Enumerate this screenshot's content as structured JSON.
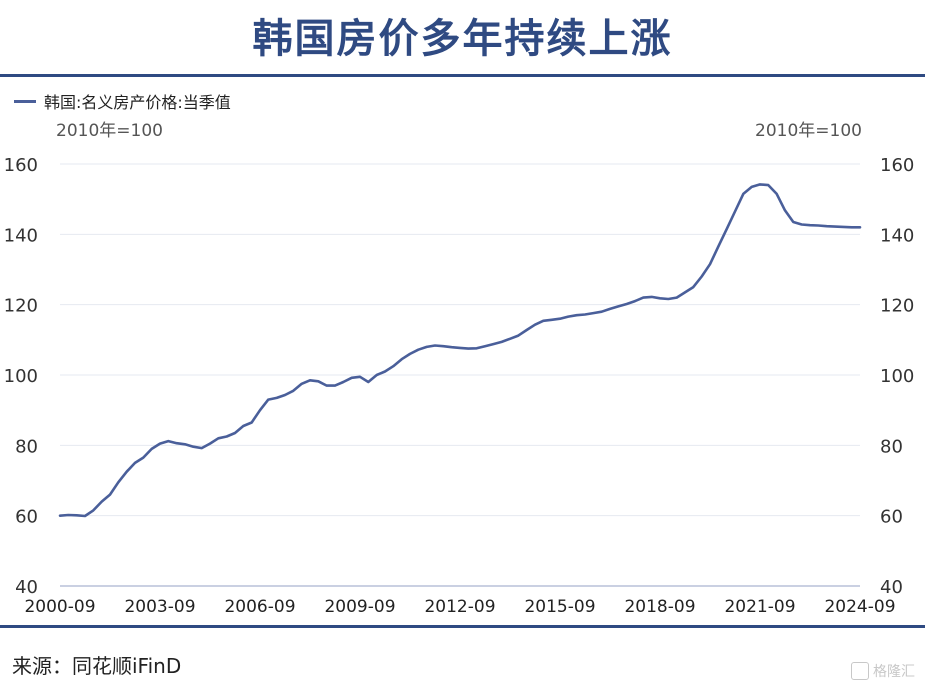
{
  "header": {
    "title": "韩国房价多年持续上涨"
  },
  "legend": {
    "label": "韩国:名义房产价格:当季值",
    "color": "#4a5f9a"
  },
  "units": {
    "left": "2010年=100",
    "right": "2010年=100"
  },
  "footer": {
    "source": "来源：同花顺iFinD",
    "watermark": "格隆汇"
  },
  "chart_data": {
    "type": "line",
    "title": "韩国房价多年持续上涨",
    "xlabel": "",
    "ylabel": "",
    "ylim": [
      40,
      160
    ],
    "yticks": [
      40,
      60,
      80,
      100,
      120,
      140,
      160
    ],
    "xtick_labels": [
      "2000-09",
      "2003-09",
      "2006-09",
      "2009-09",
      "2012-09",
      "2015-09",
      "2018-09",
      "2021-09",
      "2024-09"
    ],
    "grid": true,
    "legend_position": "top-left",
    "series": [
      {
        "name": "韩国:名义房产价格:当季值",
        "color": "#4a5f9a",
        "x": [
          "2000-09",
          "2000-12",
          "2001-03",
          "2001-06",
          "2001-09",
          "2001-12",
          "2002-03",
          "2002-06",
          "2002-09",
          "2002-12",
          "2003-03",
          "2003-06",
          "2003-09",
          "2003-12",
          "2004-03",
          "2004-06",
          "2004-09",
          "2004-12",
          "2005-03",
          "2005-06",
          "2005-09",
          "2005-12",
          "2006-03",
          "2006-06",
          "2006-09",
          "2006-12",
          "2007-03",
          "2007-06",
          "2007-09",
          "2007-12",
          "2008-03",
          "2008-06",
          "2008-09",
          "2008-12",
          "2009-03",
          "2009-06",
          "2009-09",
          "2009-12",
          "2010-03",
          "2010-06",
          "2010-09",
          "2010-12",
          "2011-03",
          "2011-06",
          "2011-09",
          "2011-12",
          "2012-03",
          "2012-06",
          "2012-09",
          "2012-12",
          "2013-03",
          "2013-06",
          "2013-09",
          "2013-12",
          "2014-03",
          "2014-06",
          "2014-09",
          "2014-12",
          "2015-03",
          "2015-06",
          "2015-09",
          "2015-12",
          "2016-03",
          "2016-06",
          "2016-09",
          "2016-12",
          "2017-03",
          "2017-06",
          "2017-09",
          "2017-12",
          "2018-03",
          "2018-06",
          "2018-09",
          "2018-12",
          "2019-03",
          "2019-06",
          "2019-09",
          "2019-12",
          "2020-03",
          "2020-06",
          "2020-09",
          "2020-12",
          "2021-03",
          "2021-06",
          "2021-09",
          "2021-12",
          "2022-03",
          "2022-06",
          "2022-09",
          "2022-12",
          "2023-03",
          "2023-06",
          "2023-09",
          "2023-12",
          "2024-03",
          "2024-06",
          "2024-09"
        ],
        "values": [
          60.0,
          60.2,
          60.1,
          59.9,
          61.5,
          64.0,
          66.0,
          69.5,
          72.5,
          75.0,
          76.5,
          79.0,
          80.5,
          81.2,
          80.6,
          80.3,
          79.6,
          79.2,
          80.5,
          82.0,
          82.5,
          83.5,
          85.5,
          86.5,
          90.0,
          93.0,
          93.5,
          94.3,
          95.5,
          97.5,
          98.5,
          98.2,
          97.0,
          97.0,
          98.0,
          99.2,
          99.5,
          98.0,
          100.0,
          101.0,
          102.5,
          104.5,
          106.0,
          107.2,
          108.0,
          108.4,
          108.2,
          107.9,
          107.7,
          107.5,
          107.6,
          108.2,
          108.8,
          109.4,
          110.3,
          111.2,
          112.8,
          114.3,
          115.4,
          115.7,
          116.0,
          116.6,
          117.0,
          117.2,
          117.6,
          118.0,
          118.8,
          119.5,
          120.2,
          121.0,
          122.0,
          122.2,
          121.8,
          121.6,
          122.0,
          123.5,
          125.0,
          128.0,
          131.5,
          136.5,
          141.5,
          146.5,
          151.5,
          153.5,
          154.2,
          154.0,
          151.5,
          146.8,
          143.5,
          142.8,
          142.6,
          142.5,
          142.3,
          142.2,
          142.1,
          142.0,
          142.0
        ]
      }
    ]
  }
}
